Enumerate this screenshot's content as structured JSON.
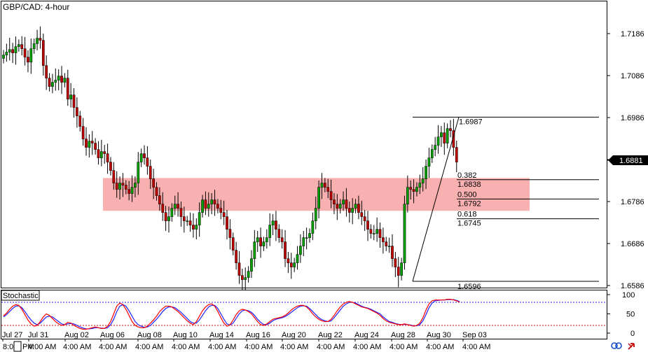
{
  "title": "GBP/CAD: 4-hour",
  "indicator_title": "Stochastic",
  "current_price": "1.6881",
  "colors": {
    "bull": "#00a000",
    "bear": "#c00000",
    "zone_fill": "#f9b0b0",
    "stoch_k": "#ff0000",
    "stoch_d": "#2020ff",
    "current_price_bg": "#000000"
  },
  "fib": {
    "high_label": "1.6987",
    "low_label": "1.6596",
    "levels": [
      {
        "ratio": "0.382",
        "price": "1.6838"
      },
      {
        "ratio": "0.500",
        "price": "1.6792"
      },
      {
        "ratio": "0.618",
        "price": "1.6745"
      }
    ]
  },
  "x_axis": {
    "top_labels": [
      "Jul 27",
      "Jul 31",
      "Aug 02",
      "Aug 06",
      "Aug 08",
      "Aug 10",
      "Aug 14",
      "Aug 16",
      "Aug 20",
      "Aug 22",
      "Aug 24",
      "Aug 28",
      "Aug 30",
      "Sep 03"
    ],
    "bottom_labels": [
      "8:0",
      "PM",
      "4:00 AM",
      "4:00 AM",
      "4:00 AM",
      "4:00 AM",
      "4:00 AM",
      "4:00 AM",
      "4:00 AM",
      "4:00 AM",
      "4:00 AM",
      "4:00 AM",
      "4:00 AM",
      "4:00 AM",
      "4:00 AM"
    ]
  },
  "chart_data": [
    {
      "type": "candlestick",
      "title": "GBP/CAD: 4-hour",
      "ylim": [
        1.657,
        1.724
      ],
      "y_ticks": [
        "1.7186",
        "1.7086",
        "1.6986",
        "1.6886",
        "1.6786",
        "1.6686",
        "1.6586"
      ],
      "zone": {
        "from": 1.6764,
        "to": 1.6842
      },
      "close_series": [
        1.7135,
        1.7142,
        1.7148,
        1.714,
        1.7155,
        1.716,
        1.715,
        1.713,
        1.7118,
        1.715,
        1.7162,
        1.7175,
        1.717,
        1.711,
        1.708,
        1.706,
        1.707,
        1.7075,
        1.7085,
        1.707,
        1.708,
        1.703,
        1.704,
        1.701,
        1.699,
        1.6965,
        1.6935,
        1.6915,
        1.693,
        1.6925,
        1.691,
        1.689,
        1.6905,
        1.69,
        1.688,
        1.686,
        1.683,
        1.6815,
        1.683,
        1.6825,
        1.6815,
        1.6805,
        1.682,
        1.683,
        1.688,
        1.69,
        1.689,
        1.687,
        1.684,
        1.682,
        1.68,
        1.678,
        1.676,
        1.674,
        1.675,
        1.677,
        1.678,
        1.677,
        1.675,
        1.674,
        1.674,
        1.673,
        1.672,
        1.673,
        1.676,
        1.679,
        1.677,
        1.678,
        1.679,
        1.678,
        1.677,
        1.676,
        1.675,
        1.672,
        1.67,
        1.667,
        1.664,
        1.661,
        1.66,
        1.6605,
        1.662,
        1.665,
        1.669,
        1.67,
        1.668,
        1.669,
        1.67,
        1.673,
        1.674,
        1.672,
        1.67,
        1.669,
        1.665,
        1.664,
        1.663,
        1.664,
        1.666,
        1.668,
        1.67,
        1.67,
        1.671,
        1.674,
        1.677,
        1.682,
        1.683,
        1.682,
        1.681,
        1.679,
        1.678,
        1.677,
        1.678,
        1.679,
        1.677,
        1.676,
        1.677,
        1.678,
        1.676,
        1.675,
        1.674,
        1.672,
        1.671,
        1.671,
        1.672,
        1.67,
        1.669,
        1.668,
        1.668,
        1.665,
        1.663,
        1.661,
        1.664,
        1.678,
        1.682,
        1.6815,
        1.681,
        1.682,
        1.683,
        1.684,
        1.687,
        1.689,
        1.691,
        1.692,
        1.694,
        1.695,
        1.6925,
        1.696,
        1.6955,
        1.6915,
        1.688
      ]
    },
    {
      "type": "line",
      "title": "Stochastic",
      "ylim": [
        0,
        100
      ],
      "y_ticks": [
        "100",
        "50",
        "0"
      ],
      "levels": [
        80,
        20
      ],
      "series": [
        {
          "values": [
            45,
            52,
            62,
            70,
            74,
            72,
            62,
            48,
            34,
            24,
            18,
            20,
            30,
            42,
            50,
            46,
            38,
            30,
            24,
            20,
            22,
            28,
            26,
            20,
            16,
            12,
            10,
            10,
            12,
            14,
            16,
            14,
            12,
            12,
            18,
            30,
            50,
            70,
            78,
            74,
            62,
            46,
            30,
            20,
            16,
            14,
            14,
            18,
            26,
            34,
            44,
            56,
            64,
            70,
            70,
            68,
            62,
            56,
            48,
            40,
            32,
            26,
            22,
            30,
            44,
            58,
            68,
            74,
            76,
            70,
            56,
            40,
            26,
            18,
            22,
            34,
            48,
            58,
            62,
            60,
            56,
            50,
            40,
            30,
            22,
            20,
            24,
            30,
            36,
            38,
            40,
            42,
            46,
            52,
            60,
            66,
            70,
            72,
            72,
            68,
            60,
            50,
            42,
            36,
            32,
            30,
            30,
            36,
            46,
            58,
            68,
            76,
            80,
            82,
            80,
            76,
            72,
            68,
            66,
            64,
            60,
            56,
            52,
            46,
            38,
            32,
            28,
            26,
            24,
            22,
            22,
            24,
            22,
            20,
            18,
            20,
            26,
            40,
            60,
            76,
            84,
            86,
            86,
            86,
            86,
            88,
            88,
            86,
            84,
            80
          ]
        },
        {
          "values": [
            42,
            48,
            56,
            64,
            70,
            71,
            66,
            56,
            44,
            34,
            26,
            22,
            26,
            34,
            42,
            44,
            42,
            36,
            30,
            24,
            22,
            24,
            25,
            24,
            20,
            16,
            13,
            11,
            11,
            12,
            14,
            14,
            13,
            12,
            14,
            22,
            36,
            56,
            70,
            74,
            70,
            58,
            44,
            30,
            22,
            18,
            15,
            16,
            20,
            28,
            36,
            46,
            56,
            64,
            68,
            68,
            66,
            60,
            54,
            46,
            38,
            30,
            26,
            26,
            34,
            46,
            58,
            68,
            72,
            72,
            64,
            50,
            36,
            24,
            21,
            26,
            38,
            50,
            58,
            60,
            58,
            54,
            46,
            36,
            28,
            22,
            22,
            26,
            32,
            36,
            38,
            40,
            43,
            48,
            54,
            60,
            66,
            70,
            71,
            70,
            64,
            56,
            48,
            40,
            35,
            32,
            30,
            32,
            40,
            50,
            60,
            70,
            76,
            80,
            80,
            78,
            74,
            70,
            67,
            65,
            62,
            58,
            54,
            50,
            42,
            36,
            30,
            28,
            25,
            23,
            22,
            23,
            22,
            21,
            19,
            19,
            22,
            32,
            48,
            66,
            78,
            84,
            85,
            86,
            86,
            87,
            87,
            87,
            85,
            82
          ]
        }
      ]
    }
  ]
}
